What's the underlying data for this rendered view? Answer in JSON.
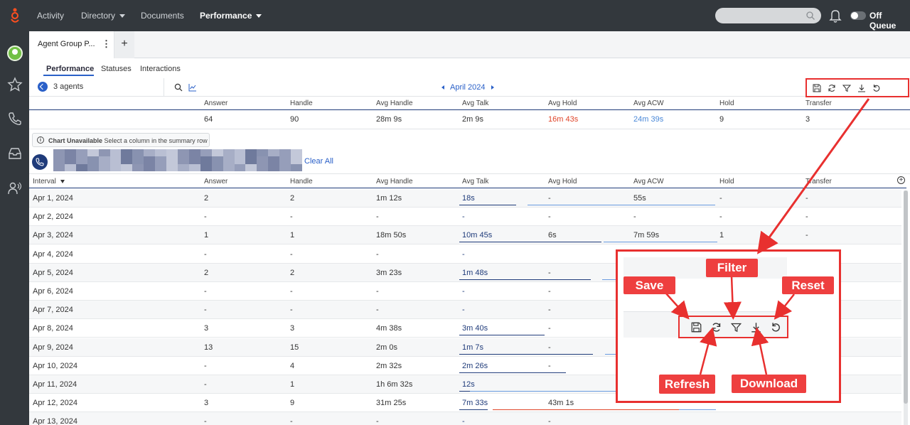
{
  "topnav": {
    "items": [
      "Activity",
      "Directory",
      "Documents",
      "Performance"
    ],
    "status_label": "Off Queue"
  },
  "tabs": {
    "active_label": "Agent Group P...",
    "add_label": "+"
  },
  "subtabs": [
    "Performance",
    "Statuses",
    "Interactions"
  ],
  "toolbar": {
    "agents_label": "3 agents",
    "month": "April 2024"
  },
  "summary": {
    "headers": [
      "Answer",
      "Handle",
      "Avg Handle",
      "Avg Talk",
      "Avg Hold",
      "Avg ACW",
      "Hold",
      "Transfer"
    ],
    "values": [
      "64",
      "90",
      "28m 9s",
      "2m 9s",
      "16m 43s",
      "24m 39s",
      "9",
      "3"
    ]
  },
  "chart_notice": {
    "title": "Chart Unavailable",
    "message": "Select a column in the summary row"
  },
  "clear_all": "Clear All",
  "table": {
    "headers": [
      "Interval",
      "Answer",
      "Handle",
      "Avg Handle",
      "Avg Talk",
      "Avg Hold",
      "Avg ACW",
      "Hold",
      "Transfer"
    ],
    "rows": [
      [
        "Apr 1, 2024",
        "2",
        "2",
        "1m 12s",
        "18s",
        "-",
        "55s",
        "-",
        "-"
      ],
      [
        "Apr 2, 2024",
        "-",
        "-",
        "-",
        "-",
        "-",
        "-",
        "-",
        "-"
      ],
      [
        "Apr 3, 2024",
        "1",
        "1",
        "18m 50s",
        "10m 45s",
        "6s",
        "7m 59s",
        "1",
        "-"
      ],
      [
        "Apr 4, 2024",
        "-",
        "-",
        "-",
        "-",
        "",
        "",
        "",
        ""
      ],
      [
        "Apr 5, 2024",
        "2",
        "2",
        "3m 23s",
        "1m 48s",
        "-",
        "",
        "",
        ""
      ],
      [
        "Apr 6, 2024",
        "-",
        "-",
        "-",
        "-",
        "-",
        "",
        "",
        ""
      ],
      [
        "Apr 7, 2024",
        "-",
        "-",
        "-",
        "-",
        "-",
        "",
        "",
        ""
      ],
      [
        "Apr 8, 2024",
        "3",
        "3",
        "4m 38s",
        "3m 40s",
        "-",
        "",
        "",
        ""
      ],
      [
        "Apr 9, 2024",
        "13",
        "15",
        "2m 0s",
        "1m 7s",
        "-",
        "",
        "",
        ""
      ],
      [
        "Apr 10, 2024",
        "-",
        "4",
        "2m 32s",
        "2m 26s",
        "-",
        "",
        "",
        ""
      ],
      [
        "Apr 11, 2024",
        "-",
        "1",
        "1h 6m 32s",
        "12s",
        "",
        "",
        "",
        ""
      ],
      [
        "Apr 12, 2024",
        "3",
        "9",
        "31m 25s",
        "7m 33s",
        "43m 1s",
        "",
        "",
        ""
      ],
      [
        "Apr 13, 2024",
        "-",
        "-",
        "-",
        "-",
        "-",
        "",
        "",
        ""
      ]
    ]
  },
  "callout_labels": {
    "save": "Save",
    "filter": "Filter",
    "reset": "Reset",
    "refresh": "Refresh",
    "download": "Download"
  },
  "colors": {
    "nav_bg": "#33383d",
    "accent": "#2a60c8",
    "annotation": "#e8302f",
    "hold_red": "#e0452a",
    "acw_blue": "#4a88d8"
  }
}
